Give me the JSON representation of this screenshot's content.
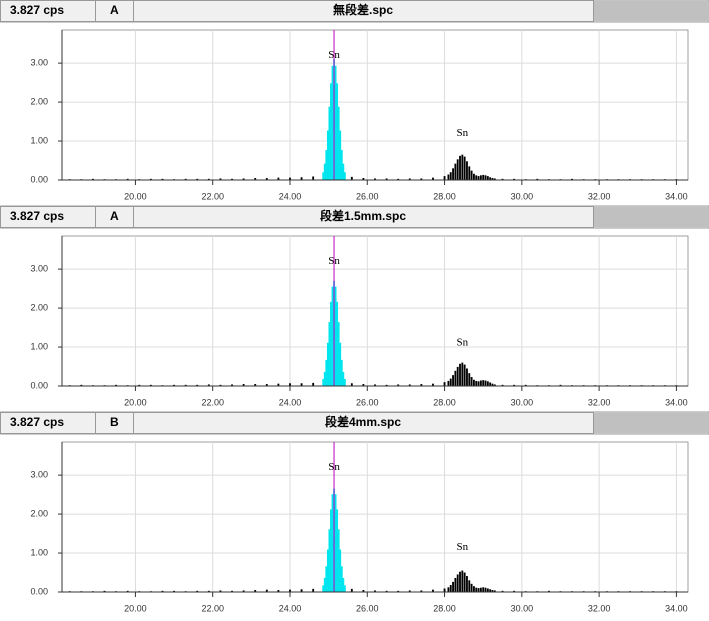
{
  "chart_data": [
    {
      "type": "bar",
      "scale_label": "3.827 cps",
      "channel": "A",
      "title": "無段差.spc",
      "xlim": [
        18.1,
        34.3
      ],
      "ylim": [
        0,
        3.85
      ],
      "xticks": [
        {
          "value": 20,
          "label": "20.00"
        },
        {
          "value": 22,
          "label": "22.00"
        },
        {
          "value": 24,
          "label": "24.00"
        },
        {
          "value": 26,
          "label": "26.00"
        },
        {
          "value": 28,
          "label": "28.00"
        },
        {
          "value": 30,
          "label": "30.00"
        },
        {
          "value": 32,
          "label": "32.00"
        },
        {
          "value": 34,
          "label": "34.00"
        }
      ],
      "yticks": [
        {
          "value": 0,
          "label": "0.00"
        },
        {
          "value": 1,
          "label": "1.00"
        },
        {
          "value": 2,
          "label": "2.00"
        },
        {
          "value": 3,
          "label": "3.00"
        }
      ],
      "grid": true,
      "marker_x": 25.14,
      "marker_color": "#c000c0",
      "annotations": [
        {
          "text": "Sn",
          "x": 25.14,
          "y": 3.2
        },
        {
          "text": "Sn",
          "x": 28.46,
          "y": 1.2
        }
      ],
      "series": [
        {
          "color": "#00e5ee",
          "x": [
            24.86,
            24.9,
            24.94,
            24.98,
            25.02,
            25.06,
            25.1,
            25.14,
            25.18,
            25.22,
            25.26,
            25.3,
            25.34,
            25.38,
            25.42
          ],
          "values": [
            0.2,
            0.42,
            0.77,
            1.27,
            1.88,
            2.48,
            2.93,
            3.1,
            2.93,
            2.48,
            1.88,
            1.27,
            0.77,
            0.42,
            0.2
          ]
        },
        {
          "color": "#000000",
          "x": [
            18.3,
            18.6,
            18.9,
            19.2,
            19.5,
            19.8,
            20.1,
            20.4,
            20.7,
            21.0,
            21.3,
            21.6,
            21.9,
            22.2,
            22.5,
            22.8,
            23.1,
            23.4,
            23.7,
            24.0,
            24.3,
            24.6,
            25.6,
            25.9,
            26.2,
            26.5,
            26.8,
            27.1,
            27.4,
            27.7,
            28.0,
            28.1,
            28.16,
            28.22,
            28.28,
            28.34,
            28.4,
            28.46,
            28.52,
            28.58,
            28.64,
            28.7,
            28.76,
            28.82,
            28.88,
            28.94,
            29.0,
            29.06,
            29.12,
            29.18,
            29.24,
            29.3,
            29.5,
            29.8,
            30.1,
            30.4,
            30.7,
            31.0,
            31.3,
            31.6,
            31.9,
            32.2,
            32.5,
            32.8,
            33.1,
            33.4,
            33.7,
            34.0
          ],
          "values": [
            0.02,
            0.02,
            0.03,
            0.02,
            0.02,
            0.03,
            0.02,
            0.03,
            0.03,
            0.02,
            0.03,
            0.03,
            0.03,
            0.04,
            0.03,
            0.04,
            0.05,
            0.05,
            0.06,
            0.06,
            0.07,
            0.09,
            0.08,
            0.05,
            0.04,
            0.04,
            0.03,
            0.04,
            0.04,
            0.06,
            0.1,
            0.14,
            0.2,
            0.3,
            0.42,
            0.53,
            0.62,
            0.65,
            0.6,
            0.48,
            0.35,
            0.24,
            0.16,
            0.12,
            0.1,
            0.12,
            0.13,
            0.12,
            0.1,
            0.07,
            0.05,
            0.04,
            0.03,
            0.03,
            0.02,
            0.03,
            0.02,
            0.02,
            0.03,
            0.02,
            0.02,
            0.02,
            0.02,
            0.02,
            0.02,
            0.02,
            0.02,
            0.02
          ]
        }
      ]
    },
    {
      "type": "bar",
      "scale_label": "3.827 cps",
      "channel": "A",
      "title": "段差1.5mm.spc",
      "xlim": [
        18.1,
        34.3
      ],
      "ylim": [
        0,
        3.85
      ],
      "xticks": [
        {
          "value": 20,
          "label": "20.00"
        },
        {
          "value": 22,
          "label": "22.00"
        },
        {
          "value": 24,
          "label": "24.00"
        },
        {
          "value": 26,
          "label": "26.00"
        },
        {
          "value": 28,
          "label": "28.00"
        },
        {
          "value": 30,
          "label": "30.00"
        },
        {
          "value": 32,
          "label": "32.00"
        },
        {
          "value": 34,
          "label": "34.00"
        }
      ],
      "yticks": [
        {
          "value": 0,
          "label": "0.00"
        },
        {
          "value": 1,
          "label": "1.00"
        },
        {
          "value": 2,
          "label": "2.00"
        },
        {
          "value": 3,
          "label": "3.00"
        }
      ],
      "grid": true,
      "marker_x": 25.14,
      "marker_color": "#c000c0",
      "annotations": [
        {
          "text": "Sn",
          "x": 25.14,
          "y": 3.2
        },
        {
          "text": "Sn",
          "x": 28.46,
          "y": 1.1
        }
      ],
      "series": [
        {
          "color": "#00e5ee",
          "x": [
            24.86,
            24.9,
            24.94,
            24.98,
            25.02,
            25.06,
            25.1,
            25.14,
            25.18,
            25.22,
            25.26,
            25.3,
            25.34,
            25.38,
            25.42
          ],
          "values": [
            0.18,
            0.36,
            0.67,
            1.11,
            1.64,
            2.16,
            2.55,
            2.7,
            2.55,
            2.16,
            1.64,
            1.11,
            0.67,
            0.36,
            0.18
          ]
        },
        {
          "color": "#000000",
          "x": [
            18.3,
            18.6,
            18.9,
            19.2,
            19.5,
            19.8,
            20.1,
            20.4,
            20.7,
            21.0,
            21.3,
            21.6,
            21.9,
            22.2,
            22.5,
            22.8,
            23.1,
            23.4,
            23.7,
            24.0,
            24.3,
            24.6,
            25.6,
            25.9,
            26.2,
            26.5,
            26.8,
            27.1,
            27.4,
            27.7,
            28.0,
            28.1,
            28.16,
            28.22,
            28.28,
            28.34,
            28.4,
            28.46,
            28.52,
            28.58,
            28.64,
            28.7,
            28.76,
            28.82,
            28.88,
            28.94,
            29.0,
            29.06,
            29.12,
            29.18,
            29.24,
            29.3,
            29.5,
            29.8,
            30.1,
            30.4,
            30.7,
            31.0,
            31.3,
            31.6,
            31.9,
            32.2,
            32.5,
            32.8,
            33.1,
            33.4,
            33.7,
            34.0
          ],
          "values": [
            0.02,
            0.03,
            0.02,
            0.02,
            0.03,
            0.02,
            0.03,
            0.03,
            0.02,
            0.03,
            0.03,
            0.03,
            0.04,
            0.03,
            0.04,
            0.05,
            0.05,
            0.05,
            0.06,
            0.07,
            0.07,
            0.08,
            0.07,
            0.05,
            0.04,
            0.03,
            0.04,
            0.04,
            0.05,
            0.06,
            0.1,
            0.13,
            0.19,
            0.28,
            0.39,
            0.49,
            0.57,
            0.6,
            0.55,
            0.45,
            0.33,
            0.23,
            0.16,
            0.13,
            0.12,
            0.14,
            0.15,
            0.14,
            0.12,
            0.09,
            0.06,
            0.04,
            0.03,
            0.03,
            0.03,
            0.02,
            0.02,
            0.03,
            0.02,
            0.02,
            0.02,
            0.02,
            0.02,
            0.02,
            0.02,
            0.02,
            0.02,
            0.02
          ]
        }
      ]
    },
    {
      "type": "bar",
      "scale_label": "3.827 cps",
      "channel": "B",
      "title": "段差4mm.spc",
      "xlim": [
        18.1,
        34.3
      ],
      "ylim": [
        0,
        3.85
      ],
      "xticks": [
        {
          "value": 20,
          "label": "20.00"
        },
        {
          "value": 22,
          "label": "22.00"
        },
        {
          "value": 24,
          "label": "24.00"
        },
        {
          "value": 26,
          "label": "26.00"
        },
        {
          "value": 28,
          "label": "28.00"
        },
        {
          "value": 30,
          "label": "30.00"
        },
        {
          "value": 32,
          "label": "32.00"
        },
        {
          "value": 34,
          "label": "34.00"
        }
      ],
      "yticks": [
        {
          "value": 0,
          "label": "0.00"
        },
        {
          "value": 1,
          "label": "1.00"
        },
        {
          "value": 2,
          "label": "2.00"
        },
        {
          "value": 3,
          "label": "3.00"
        }
      ],
      "grid": true,
      "marker_x": 25.14,
      "marker_color": "#c000c0",
      "annotations": [
        {
          "text": "Sn",
          "x": 25.14,
          "y": 3.2
        },
        {
          "text": "Sn",
          "x": 28.46,
          "y": 1.14
        }
      ],
      "series": [
        {
          "color": "#00e5ee",
          "x": [
            24.86,
            24.9,
            24.94,
            24.98,
            25.02,
            25.06,
            25.1,
            25.14,
            25.18,
            25.22,
            25.26,
            25.3,
            25.34,
            25.38,
            25.42
          ],
          "values": [
            0.17,
            0.36,
            0.66,
            1.09,
            1.61,
            2.12,
            2.51,
            2.65,
            2.51,
            2.12,
            1.61,
            1.09,
            0.66,
            0.36,
            0.17
          ]
        },
        {
          "color": "#000000",
          "x": [
            18.3,
            18.6,
            18.9,
            19.2,
            19.5,
            19.8,
            20.1,
            20.4,
            20.7,
            21.0,
            21.3,
            21.6,
            21.9,
            22.2,
            22.5,
            22.8,
            23.1,
            23.4,
            23.7,
            24.0,
            24.3,
            24.6,
            25.6,
            25.9,
            26.2,
            26.5,
            26.8,
            27.1,
            27.4,
            27.7,
            28.0,
            28.1,
            28.16,
            28.22,
            28.28,
            28.34,
            28.4,
            28.46,
            28.52,
            28.58,
            28.64,
            28.7,
            28.76,
            28.82,
            28.88,
            28.94,
            29.0,
            29.06,
            29.12,
            29.18,
            29.24,
            29.3,
            29.5,
            29.8,
            30.1,
            30.4,
            30.7,
            31.0,
            31.3,
            31.6,
            31.9,
            32.2,
            32.5,
            32.8,
            33.1,
            33.4,
            33.7,
            34.0
          ],
          "values": [
            0.02,
            0.02,
            0.02,
            0.03,
            0.02,
            0.03,
            0.02,
            0.02,
            0.03,
            0.03,
            0.02,
            0.03,
            0.03,
            0.04,
            0.03,
            0.04,
            0.05,
            0.06,
            0.05,
            0.06,
            0.07,
            0.08,
            0.08,
            0.05,
            0.04,
            0.03,
            0.03,
            0.04,
            0.04,
            0.06,
            0.09,
            0.12,
            0.18,
            0.26,
            0.36,
            0.45,
            0.52,
            0.55,
            0.5,
            0.41,
            0.3,
            0.21,
            0.15,
            0.11,
            0.1,
            0.11,
            0.12,
            0.11,
            0.09,
            0.07,
            0.05,
            0.04,
            0.03,
            0.03,
            0.02,
            0.02,
            0.03,
            0.02,
            0.02,
            0.02,
            0.02,
            0.02,
            0.02,
            0.02,
            0.02,
            0.02,
            0.02,
            0.02
          ]
        }
      ]
    }
  ]
}
